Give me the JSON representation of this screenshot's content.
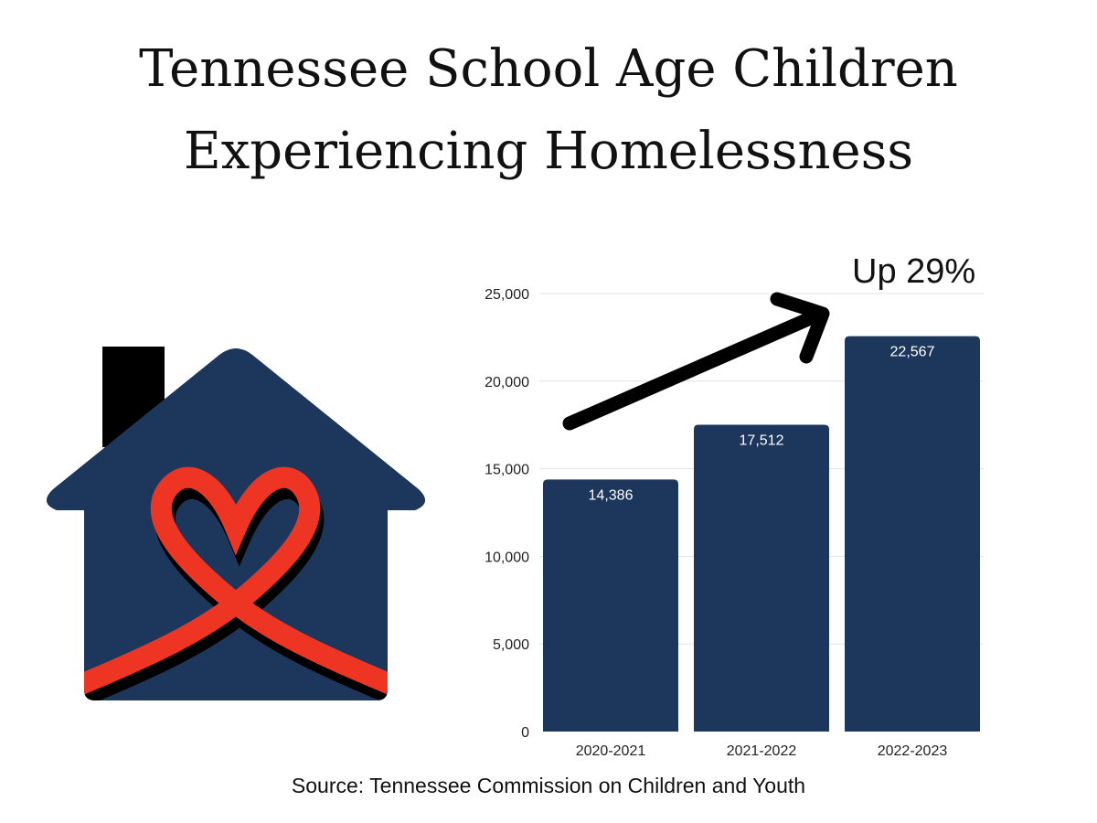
{
  "title_line1": "Tennessee School Age Children",
  "title_line2": "Experiencing Homelessness",
  "annotation": "Up 29%",
  "source": "Source: Tennessee Commission on Children and Youth",
  "colors": {
    "bar": "#1d365c",
    "house": "#1d365c",
    "ribbon": "#ee3524",
    "chimney": "#000000"
  },
  "icons": [
    "house-heart-ribbon-icon",
    "arrow-up-right-icon"
  ],
  "chart_data": {
    "type": "bar",
    "categories": [
      "2020-2021",
      "2021-2022",
      "2022-2023"
    ],
    "values": [
      14386,
      17512,
      22567
    ],
    "data_labels": [
      "14,386",
      "17,512",
      "22,567"
    ],
    "yticks": [
      "0",
      "5,000",
      "10,000",
      "15,000",
      "20,000",
      "25,000"
    ],
    "ylim": [
      0,
      25000
    ],
    "grid": true
  }
}
